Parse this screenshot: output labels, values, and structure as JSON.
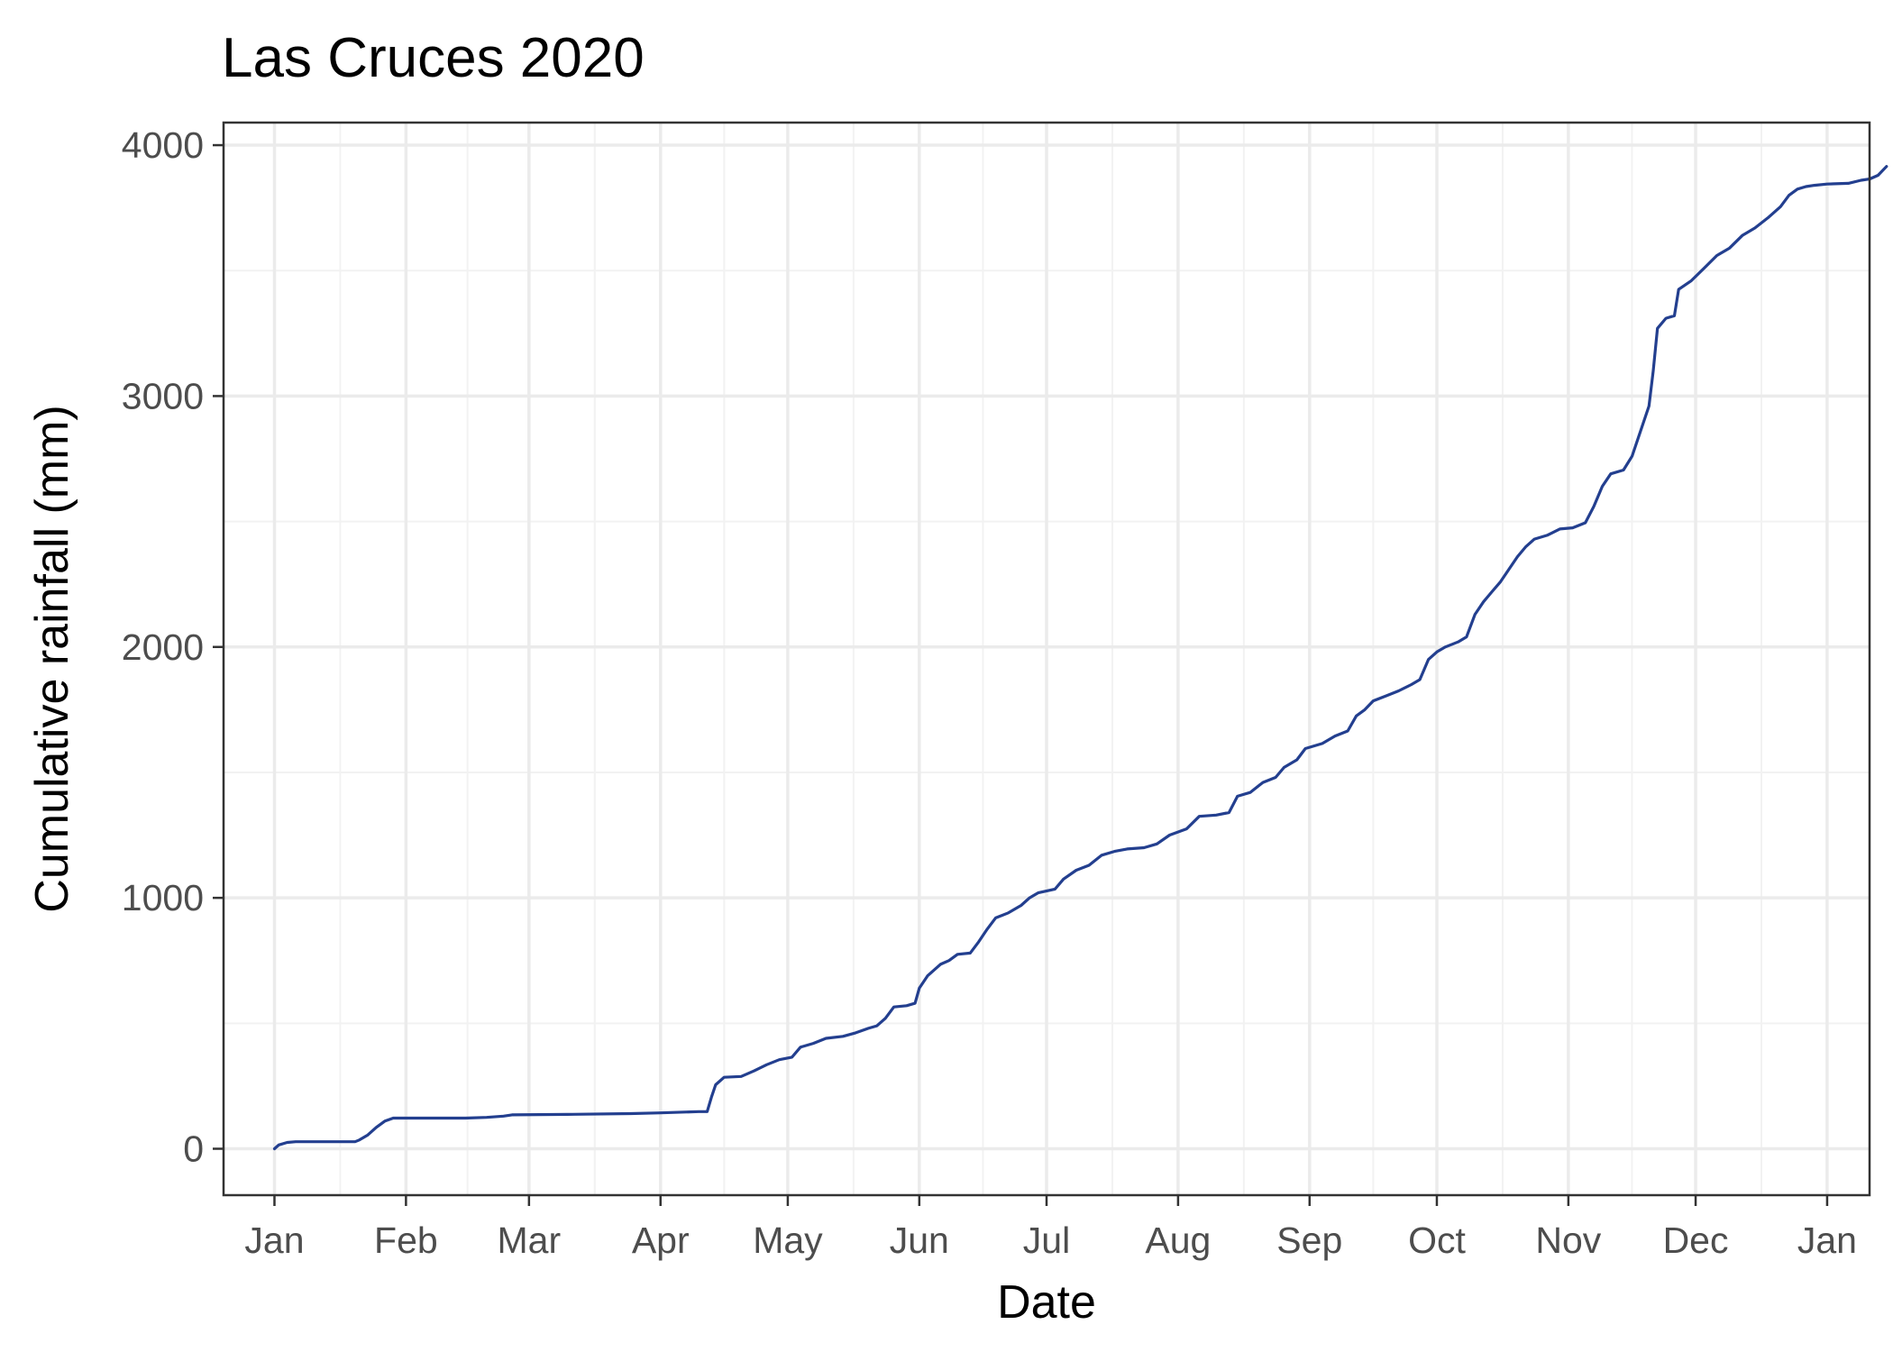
{
  "chart_data": {
    "type": "line",
    "title": "Las Cruces 2020",
    "xlabel": "Date",
    "ylabel": "Cumulative rainfall (mm)",
    "xlim": [
      "2019-12-20",
      "2021-01-11"
    ],
    "ylim": [
      -185,
      4090
    ],
    "x_ticks": [
      {
        "date": "2020-01-01",
        "label": "Jan"
      },
      {
        "date": "2020-02-01",
        "label": "Feb"
      },
      {
        "date": "2020-03-01",
        "label": "Mar"
      },
      {
        "date": "2020-04-01",
        "label": "Apr"
      },
      {
        "date": "2020-05-01",
        "label": "May"
      },
      {
        "date": "2020-06-01",
        "label": "Jun"
      },
      {
        "date": "2020-07-01",
        "label": "Jul"
      },
      {
        "date": "2020-08-01",
        "label": "Aug"
      },
      {
        "date": "2020-09-01",
        "label": "Sep"
      },
      {
        "date": "2020-10-01",
        "label": "Oct"
      },
      {
        "date": "2020-11-01",
        "label": "Nov"
      },
      {
        "date": "2020-12-01",
        "label": "Dec"
      },
      {
        "date": "2021-01-01",
        "label": "Jan"
      }
    ],
    "y_ticks": [
      0,
      1000,
      2000,
      3000,
      4000
    ],
    "grid": true,
    "legend": "none",
    "series": [
      {
        "color": "#233f8f",
        "points": [
          [
            "2020-01-01",
            0
          ],
          [
            "2020-01-02",
            15
          ],
          [
            "2020-01-04",
            25
          ],
          [
            "2020-01-06",
            28
          ],
          [
            "2020-01-10",
            28
          ],
          [
            "2020-01-15",
            28
          ],
          [
            "2020-01-20",
            28
          ],
          [
            "2020-01-21",
            35
          ],
          [
            "2020-01-23",
            55
          ],
          [
            "2020-01-25",
            85
          ],
          [
            "2020-01-27",
            110
          ],
          [
            "2020-01-29",
            122
          ],
          [
            "2020-02-05",
            122
          ],
          [
            "2020-02-15",
            122
          ],
          [
            "2020-02-20",
            125
          ],
          [
            "2020-02-24",
            130
          ],
          [
            "2020-02-26",
            135
          ],
          [
            "2020-03-10",
            137
          ],
          [
            "2020-03-25",
            140
          ],
          [
            "2020-04-01",
            143
          ],
          [
            "2020-04-10",
            148
          ],
          [
            "2020-04-12",
            148
          ],
          [
            "2020-04-13",
            205
          ],
          [
            "2020-04-14",
            255
          ],
          [
            "2020-04-16",
            285
          ],
          [
            "2020-04-20",
            288
          ],
          [
            "2020-04-23",
            310
          ],
          [
            "2020-04-26",
            335
          ],
          [
            "2020-04-29",
            355
          ],
          [
            "2020-05-02",
            365
          ],
          [
            "2020-05-04",
            405
          ],
          [
            "2020-05-07",
            420
          ],
          [
            "2020-05-10",
            440
          ],
          [
            "2020-05-14",
            448
          ],
          [
            "2020-05-17",
            462
          ],
          [
            "2020-05-20",
            480
          ],
          [
            "2020-05-22",
            490
          ],
          [
            "2020-05-24",
            520
          ],
          [
            "2020-05-26",
            565
          ],
          [
            "2020-05-29",
            570
          ],
          [
            "2020-05-31",
            580
          ],
          [
            "2020-06-01",
            640
          ],
          [
            "2020-06-03",
            690
          ],
          [
            "2020-06-06",
            735
          ],
          [
            "2020-06-08",
            750
          ],
          [
            "2020-06-10",
            775
          ],
          [
            "2020-06-13",
            780
          ],
          [
            "2020-06-15",
            825
          ],
          [
            "2020-06-17",
            875
          ],
          [
            "2020-06-19",
            920
          ],
          [
            "2020-06-22",
            940
          ],
          [
            "2020-06-25",
            970
          ],
          [
            "2020-06-27",
            1000
          ],
          [
            "2020-06-29",
            1020
          ],
          [
            "2020-07-03",
            1035
          ],
          [
            "2020-07-05",
            1075
          ],
          [
            "2020-07-08",
            1110
          ],
          [
            "2020-07-11",
            1130
          ],
          [
            "2020-07-14",
            1170
          ],
          [
            "2020-07-17",
            1185
          ],
          [
            "2020-07-20",
            1195
          ],
          [
            "2020-07-24",
            1200
          ],
          [
            "2020-07-27",
            1215
          ],
          [
            "2020-07-30",
            1250
          ],
          [
            "2020-08-03",
            1275
          ],
          [
            "2020-08-06",
            1325
          ],
          [
            "2020-08-10",
            1330
          ],
          [
            "2020-08-13",
            1340
          ],
          [
            "2020-08-15",
            1405
          ],
          [
            "2020-08-18",
            1420
          ],
          [
            "2020-08-21",
            1460
          ],
          [
            "2020-08-24",
            1480
          ],
          [
            "2020-08-26",
            1520
          ],
          [
            "2020-08-29",
            1550
          ],
          [
            "2020-08-31",
            1595
          ],
          [
            "2020-09-04",
            1615
          ],
          [
            "2020-09-07",
            1645
          ],
          [
            "2020-09-10",
            1665
          ],
          [
            "2020-09-12",
            1725
          ],
          [
            "2020-09-14",
            1750
          ],
          [
            "2020-09-16",
            1785
          ],
          [
            "2020-09-19",
            1805
          ],
          [
            "2020-09-22",
            1825
          ],
          [
            "2020-09-25",
            1850
          ],
          [
            "2020-09-27",
            1870
          ],
          [
            "2020-09-29",
            1950
          ],
          [
            "2020-10-01",
            1980
          ],
          [
            "2020-10-03",
            2000
          ],
          [
            "2020-10-06",
            2020
          ],
          [
            "2020-10-08",
            2040
          ],
          [
            "2020-10-10",
            2130
          ],
          [
            "2020-10-12",
            2180
          ],
          [
            "2020-10-14",
            2220
          ],
          [
            "2020-10-16",
            2260
          ],
          [
            "2020-10-18",
            2310
          ],
          [
            "2020-10-20",
            2360
          ],
          [
            "2020-10-22",
            2400
          ],
          [
            "2020-10-24",
            2430
          ],
          [
            "2020-10-27",
            2445
          ],
          [
            "2020-10-30",
            2470
          ],
          [
            "2020-11-02",
            2475
          ],
          [
            "2020-11-05",
            2495
          ],
          [
            "2020-11-07",
            2560
          ],
          [
            "2020-11-09",
            2640
          ],
          [
            "2020-11-11",
            2690
          ],
          [
            "2020-11-14",
            2705
          ],
          [
            "2020-11-16",
            2760
          ],
          [
            "2020-11-18",
            2860
          ],
          [
            "2020-11-20",
            2960
          ],
          [
            "2020-11-21",
            3100
          ],
          [
            "2020-11-22",
            3270
          ],
          [
            "2020-11-24",
            3310
          ],
          [
            "2020-11-26",
            3320
          ],
          [
            "2020-11-27",
            3425
          ],
          [
            "2020-11-30",
            3460
          ],
          [
            "2020-12-03",
            3510
          ],
          [
            "2020-12-06",
            3560
          ],
          [
            "2020-12-09",
            3590
          ],
          [
            "2020-12-12",
            3640
          ],
          [
            "2020-12-15",
            3670
          ],
          [
            "2020-12-18",
            3710
          ],
          [
            "2020-12-21",
            3755
          ],
          [
            "2020-12-23",
            3800
          ],
          [
            "2020-12-25",
            3825
          ],
          [
            "2020-12-27",
            3835
          ],
          [
            "2020-12-29",
            3840
          ],
          [
            "2021-01-01",
            3845
          ],
          [
            "2021-01-06",
            3848
          ],
          [
            "2021-01-09",
            3860
          ],
          [
            "2021-01-11",
            3865
          ],
          [
            "2021-01-13",
            3880
          ],
          [
            "2021-01-15",
            3915
          ]
        ]
      }
    ]
  }
}
